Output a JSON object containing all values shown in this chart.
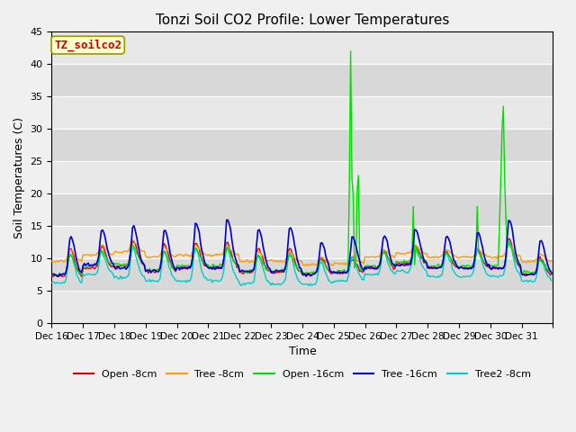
{
  "title": "Tonzi Soil CO2 Profile: Lower Temperatures",
  "ylabel": "Soil Temperatures (C)",
  "xlabel": "Time",
  "annotation": "TZ_soilco2",
  "ylim": [
    0,
    45
  ],
  "background_color": "#e0e0e0",
  "plot_bg_light": "#ebebeb",
  "plot_bg_dark": "#d8d8d8",
  "series": {
    "open_8cm": {
      "label": "Open -8cm",
      "color": "#dd0000"
    },
    "tree_8cm": {
      "label": "Tree -8cm",
      "color": "#ff9900"
    },
    "open_16cm": {
      "label": "Open -16cm",
      "color": "#00dd00"
    },
    "tree_16cm": {
      "label": "Tree -16cm",
      "color": "#0000cc"
    },
    "tree2_8cm": {
      "label": "Tree2 -8cm",
      "color": "#00cccc"
    }
  },
  "xtick_labels": [
    "Dec 16",
    "Dec 17",
    "Dec 18",
    "Dec 19",
    "Dec 20",
    "Dec 21",
    "Dec 22",
    "Dec 23",
    "Dec 24",
    "Dec 25",
    "Dec 26",
    "Dec 27",
    "Dec 28",
    "Dec 29",
    "Dec 30",
    "Dec 31"
  ],
  "ytick_vals": [
    0,
    5,
    10,
    15,
    20,
    25,
    30,
    35,
    40,
    45
  ],
  "grid_color": "#ffffff",
  "title_fontsize": 11,
  "label_fontsize": 9,
  "tick_fontsize": 8,
  "legend_fontsize": 8,
  "linewidth": 1.0
}
